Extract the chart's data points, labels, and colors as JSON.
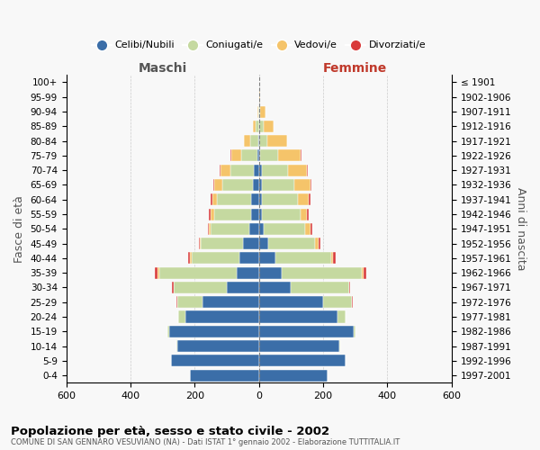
{
  "age_groups": [
    "0-4",
    "5-9",
    "10-14",
    "15-19",
    "20-24",
    "25-29",
    "30-34",
    "35-39",
    "40-44",
    "45-49",
    "50-54",
    "55-59",
    "60-64",
    "65-69",
    "70-74",
    "75-79",
    "80-84",
    "85-89",
    "90-94",
    "95-99",
    "100+"
  ],
  "birth_years": [
    "1997-2001",
    "1992-1996",
    "1987-1991",
    "1982-1986",
    "1977-1981",
    "1972-1976",
    "1967-1971",
    "1962-1966",
    "1957-1961",
    "1952-1956",
    "1947-1951",
    "1942-1946",
    "1937-1941",
    "1932-1936",
    "1927-1931",
    "1922-1926",
    "1917-1921",
    "1912-1916",
    "1907-1911",
    "1902-1906",
    "≤ 1901"
  ],
  "colors": {
    "celibi": "#3b6ea8",
    "coniugati": "#c5d9a0",
    "vedovi": "#f5c46a",
    "divorziati": "#d93b3b"
  },
  "male": {
    "celibi": [
      215,
      275,
      255,
      280,
      230,
      175,
      100,
      70,
      60,
      50,
      30,
      25,
      25,
      20,
      15,
      5,
      2,
      0,
      0,
      0,
      0
    ],
    "coniugati": [
      0,
      0,
      3,
      5,
      20,
      80,
      165,
      240,
      150,
      130,
      120,
      115,
      105,
      95,
      75,
      50,
      25,
      10,
      2,
      0,
      0
    ],
    "vedovi": [
      0,
      0,
      0,
      0,
      0,
      0,
      0,
      5,
      5,
      5,
      5,
      10,
      15,
      25,
      30,
      30,
      20,
      8,
      2,
      0,
      0
    ],
    "divorziati": [
      0,
      0,
      0,
      0,
      0,
      3,
      5,
      8,
      5,
      3,
      3,
      5,
      5,
      3,
      3,
      5,
      0,
      0,
      0,
      0,
      0
    ]
  },
  "female": {
    "nubili": [
      215,
      270,
      250,
      295,
      245,
      200,
      100,
      70,
      50,
      30,
      15,
      10,
      10,
      10,
      10,
      5,
      2,
      0,
      0,
      0,
      0
    ],
    "coniugate": [
      0,
      0,
      3,
      5,
      25,
      90,
      180,
      250,
      175,
      145,
      130,
      120,
      110,
      100,
      80,
      55,
      25,
      15,
      5,
      2,
      0
    ],
    "vedove": [
      0,
      0,
      0,
      0,
      0,
      0,
      0,
      5,
      5,
      10,
      15,
      20,
      35,
      50,
      60,
      70,
      60,
      30,
      15,
      2,
      0
    ],
    "divorziate": [
      0,
      0,
      0,
      0,
      0,
      3,
      5,
      8,
      8,
      5,
      5,
      5,
      5,
      3,
      3,
      3,
      0,
      0,
      0,
      0,
      0
    ]
  },
  "xlim": 600,
  "title": "Popolazione per età, sesso e stato civile - 2002",
  "subtitle": "COMUNE DI SAN GENNARO VESUVIANO (NA) - Dati ISTAT 1° gennaio 2002 - Elaborazione TUTTITALIA.IT",
  "xlabel_left": "Maschi",
  "xlabel_right": "Femmine",
  "ylabel_left": "Fasce di età",
  "ylabel_right": "Anni di nascita",
  "bg_color": "#f8f8f8",
  "grid_color": "#cccccc"
}
